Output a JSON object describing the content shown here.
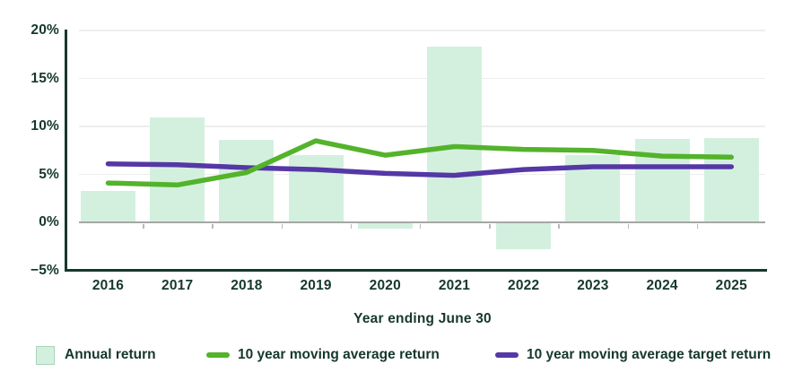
{
  "chart_data": {
    "type": "bar+line",
    "categories": [
      "2016",
      "2017",
      "2018",
      "2019",
      "2020",
      "2021",
      "2022",
      "2023",
      "2024",
      "2025"
    ],
    "series": [
      {
        "name": "Annual return",
        "type": "bar",
        "color": "#d3f0de",
        "values": [
          3.3,
          10.9,
          8.6,
          7.0,
          -0.7,
          18.3,
          -2.8,
          7.0,
          8.7,
          8.8
        ]
      },
      {
        "name": "10 year moving average return",
        "type": "line",
        "color": "#53b32b",
        "values": [
          4.1,
          3.9,
          5.2,
          8.5,
          7.0,
          7.9,
          7.6,
          7.5,
          6.9,
          6.8
        ]
      },
      {
        "name": "10 year moving average target return",
        "type": "line",
        "color": "#5537a5",
        "values": [
          6.1,
          6.0,
          5.7,
          5.5,
          5.1,
          4.9,
          5.5,
          5.8,
          5.8,
          5.8
        ]
      }
    ],
    "title": "",
    "xlabel": "Year ending June 30",
    "ylabel": "",
    "ylim": [
      -5,
      20
    ],
    "yticks": [
      20,
      15,
      10,
      5,
      0,
      -5
    ],
    "ytick_labels": [
      "20%",
      "15%",
      "10%",
      "5%",
      "0%",
      "−5%"
    ],
    "grid": "horizontal",
    "legend_position": "bottom"
  },
  "colors": {
    "text": "#16382c",
    "axis": "#16382c",
    "gridline": "#ededed",
    "zero_line": "#a6a6a6",
    "tick": "#b8b8b8",
    "bar_fill": "#d3f0de",
    "line_green": "#53b32b",
    "line_purple": "#5537a5",
    "legend_swatch_border": "#a9d4ba"
  }
}
